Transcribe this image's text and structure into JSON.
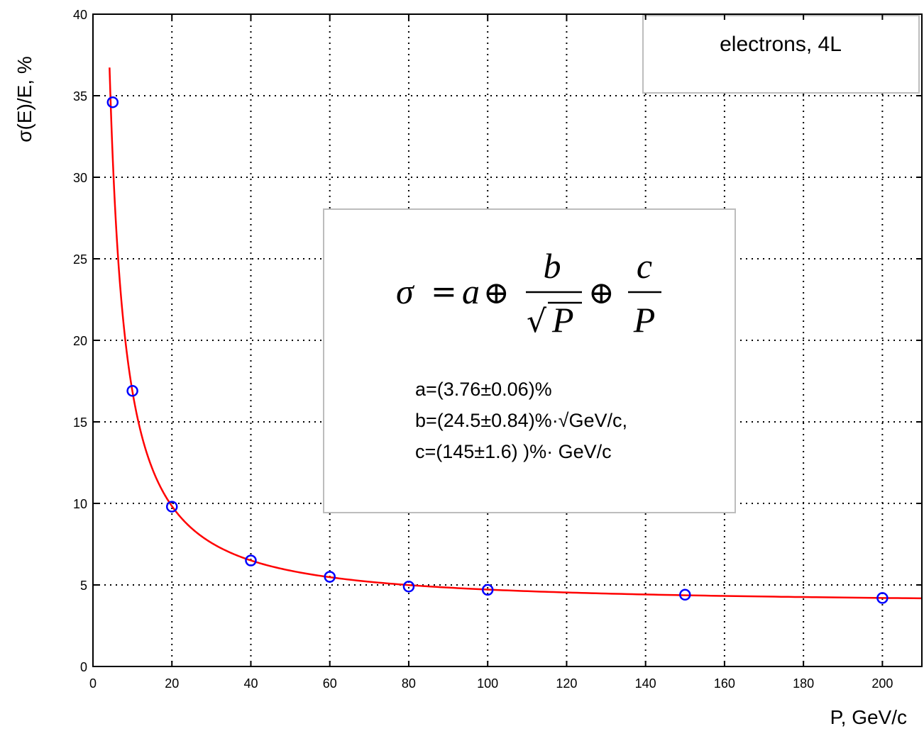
{
  "chart_data": {
    "type": "scatter",
    "xlabel": "P, GeV/c",
    "ylabel": "σ(E)/E, %",
    "xlim": [
      0,
      210
    ],
    "ylim": [
      0,
      40
    ],
    "x_ticks": [
      0,
      20,
      40,
      60,
      80,
      100,
      120,
      140,
      160,
      180,
      200
    ],
    "y_ticks": [
      0,
      5,
      10,
      15,
      20,
      25,
      30,
      35,
      40
    ],
    "grid": true,
    "legend_position": "top-right",
    "legend_label": "electrons, 4L",
    "series": [
      {
        "marker": "circle",
        "color": "#0000ff",
        "x": [
          5,
          10,
          20,
          40,
          60,
          80,
          100,
          150,
          200
        ],
        "y": [
          34.6,
          16.9,
          9.8,
          6.5,
          5.5,
          4.9,
          4.7,
          4.4,
          4.2
        ]
      }
    ],
    "fit": {
      "color": "#ff0000",
      "x_range": [
        4.2,
        210
      ],
      "params": {
        "a": 3.76,
        "b": 24.5,
        "c": 145
      }
    },
    "formula": {
      "lhs": "σ",
      "eq": "=",
      "a": "a",
      "oplus": "⊕",
      "b": "b",
      "sqrt": "√",
      "P": "P",
      "c": "c"
    },
    "fit_params": [
      "a=(3.76±0.06)%",
      "b=(24.5±0.84)%·√GeV/c,",
      "c=(145±1.6) )%· GeV/c"
    ]
  }
}
